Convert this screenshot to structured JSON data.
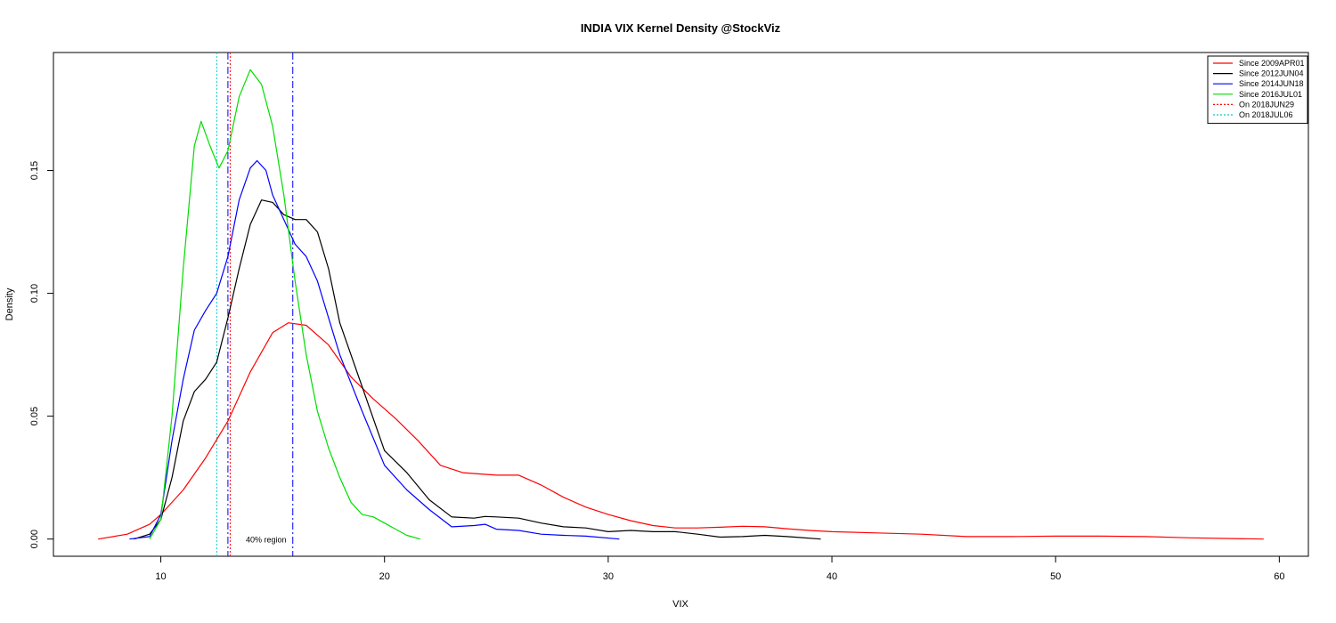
{
  "chart_data": {
    "type": "line",
    "title": "INDIA VIX Kernel Density @StockViz",
    "xlabel": "VIX",
    "ylabel": "Density",
    "xlim": [
      5.2,
      61.3
    ],
    "ylim": [
      -0.007,
      0.198
    ],
    "x_ticks": [
      10,
      20,
      30,
      40,
      50,
      60
    ],
    "y_ticks": [
      0.0,
      0.05,
      0.1,
      0.15
    ],
    "x_tick_labels": [
      "10",
      "20",
      "30",
      "40",
      "50",
      "60"
    ],
    "y_tick_labels": [
      "0.00",
      "0.05",
      "0.10",
      "0.15"
    ],
    "grid": false,
    "legend_position": "top-right",
    "series": [
      {
        "name": "Since 2009APR01",
        "color": "#ff0000",
        "style": "solid",
        "points": [
          [
            7.2,
            0
          ],
          [
            8.5,
            0.002
          ],
          [
            9.5,
            0.006
          ],
          [
            10,
            0.01
          ],
          [
            11,
            0.02
          ],
          [
            12,
            0.033
          ],
          [
            13,
            0.048
          ],
          [
            14,
            0.068
          ],
          [
            15,
            0.084
          ],
          [
            15.7,
            0.088
          ],
          [
            16.5,
            0.087
          ],
          [
            17.5,
            0.079
          ],
          [
            18.5,
            0.066
          ],
          [
            19.5,
            0.057
          ],
          [
            20.5,
            0.049
          ],
          [
            21.5,
            0.04
          ],
          [
            22.5,
            0.03
          ],
          [
            23.5,
            0.027
          ],
          [
            25,
            0.026
          ],
          [
            26,
            0.026
          ],
          [
            27,
            0.022
          ],
          [
            28,
            0.017
          ],
          [
            29,
            0.013
          ],
          [
            30,
            0.01
          ],
          [
            31,
            0.0075
          ],
          [
            32,
            0.0055
          ],
          [
            33,
            0.0045
          ],
          [
            34,
            0.0045
          ],
          [
            35,
            0.0048
          ],
          [
            36,
            0.0052
          ],
          [
            37,
            0.005
          ],
          [
            38,
            0.0042
          ],
          [
            39,
            0.0035
          ],
          [
            40,
            0.003
          ],
          [
            42,
            0.0025
          ],
          [
            44,
            0.002
          ],
          [
            46,
            0.001
          ],
          [
            48,
            0.001
          ],
          [
            50,
            0.0012
          ],
          [
            52,
            0.0012
          ],
          [
            54,
            0.001
          ],
          [
            56,
            0.0005
          ],
          [
            59.3,
            0
          ]
        ]
      },
      {
        "name": "Since 2012JUN04",
        "color": "#000000",
        "style": "solid",
        "points": [
          [
            8.8,
            0
          ],
          [
            9.5,
            0.002
          ],
          [
            10,
            0.008
          ],
          [
            10.5,
            0.025
          ],
          [
            11,
            0.048
          ],
          [
            11.5,
            0.06
          ],
          [
            12,
            0.065
          ],
          [
            12.5,
            0.072
          ],
          [
            13,
            0.09
          ],
          [
            13.5,
            0.11
          ],
          [
            14,
            0.128
          ],
          [
            14.5,
            0.138
          ],
          [
            15,
            0.137
          ],
          [
            15.5,
            0.132
          ],
          [
            16,
            0.13
          ],
          [
            16.5,
            0.13
          ],
          [
            17,
            0.125
          ],
          [
            17.5,
            0.11
          ],
          [
            18,
            0.088
          ],
          [
            19,
            0.062
          ],
          [
            20,
            0.036
          ],
          [
            21,
            0.027
          ],
          [
            22,
            0.016
          ],
          [
            23,
            0.009
          ],
          [
            24,
            0.0085
          ],
          [
            24.5,
            0.0092
          ],
          [
            25,
            0.009
          ],
          [
            26,
            0.0085
          ],
          [
            27,
            0.0065
          ],
          [
            28,
            0.005
          ],
          [
            29,
            0.0045
          ],
          [
            30,
            0.003
          ],
          [
            31,
            0.0035
          ],
          [
            32,
            0.003
          ],
          [
            33,
            0.003
          ],
          [
            34,
            0.002
          ],
          [
            35,
            0.0008
          ],
          [
            36,
            0.001
          ],
          [
            37,
            0.0015
          ],
          [
            38,
            0.001
          ],
          [
            39.5,
            0
          ]
        ]
      },
      {
        "name": "Since 2014JUN18",
        "color": "#0000ff",
        "style": "solid",
        "points": [
          [
            8.6,
            0
          ],
          [
            9.5,
            0.001
          ],
          [
            10,
            0.01
          ],
          [
            10.5,
            0.04
          ],
          [
            11,
            0.065
          ],
          [
            11.5,
            0.085
          ],
          [
            12,
            0.093
          ],
          [
            12.5,
            0.1
          ],
          [
            13,
            0.115
          ],
          [
            13.5,
            0.138
          ],
          [
            14,
            0.151
          ],
          [
            14.3,
            0.154
          ],
          [
            14.7,
            0.15
          ],
          [
            15,
            0.14
          ],
          [
            15.5,
            0.13
          ],
          [
            16,
            0.12
          ],
          [
            16.5,
            0.115
          ],
          [
            17,
            0.105
          ],
          [
            17.5,
            0.09
          ],
          [
            18,
            0.075
          ],
          [
            19,
            0.052
          ],
          [
            20,
            0.03
          ],
          [
            21,
            0.02
          ],
          [
            22,
            0.012
          ],
          [
            23,
            0.005
          ],
          [
            24,
            0.0055
          ],
          [
            24.5,
            0.006
          ],
          [
            25,
            0.004
          ],
          [
            26,
            0.0035
          ],
          [
            27,
            0.002
          ],
          [
            28,
            0.0015
          ],
          [
            29,
            0.0012
          ],
          [
            30.5,
            0
          ]
        ]
      },
      {
        "name": "Since 2016JUL01",
        "color": "#00dd00",
        "style": "solid",
        "points": [
          [
            9.5,
            0
          ],
          [
            10,
            0.008
          ],
          [
            10.5,
            0.05
          ],
          [
            11,
            0.11
          ],
          [
            11.5,
            0.16
          ],
          [
            11.8,
            0.17
          ],
          [
            12.2,
            0.16
          ],
          [
            12.6,
            0.151
          ],
          [
            13,
            0.158
          ],
          [
            13.5,
            0.18
          ],
          [
            14,
            0.191
          ],
          [
            14.5,
            0.185
          ],
          [
            15,
            0.168
          ],
          [
            15.5,
            0.14
          ],
          [
            16,
            0.105
          ],
          [
            16.5,
            0.075
          ],
          [
            17,
            0.052
          ],
          [
            17.5,
            0.037
          ],
          [
            18,
            0.025
          ],
          [
            18.5,
            0.015
          ],
          [
            19,
            0.01
          ],
          [
            19.5,
            0.009
          ],
          [
            20,
            0.0065
          ],
          [
            20.5,
            0.004
          ],
          [
            21,
            0.0015
          ],
          [
            21.6,
            0
          ]
        ]
      }
    ],
    "vlines": [
      {
        "name": "On 2018JUN29",
        "x": 13.1,
        "color": "#ff0000",
        "style": "dotted"
      },
      {
        "name": "On 2018JUL06",
        "x": 12.5,
        "color": "#00cccc",
        "style": "dotted"
      }
    ],
    "extra_vlines": [
      {
        "x": 13.0,
        "color": "#0000ff",
        "style": "dashdot"
      },
      {
        "x": 15.9,
        "color": "#0000ff",
        "style": "dashdot"
      }
    ],
    "annotations": [
      {
        "text": "40% region",
        "x": 13.8,
        "y": 0
      }
    ]
  }
}
